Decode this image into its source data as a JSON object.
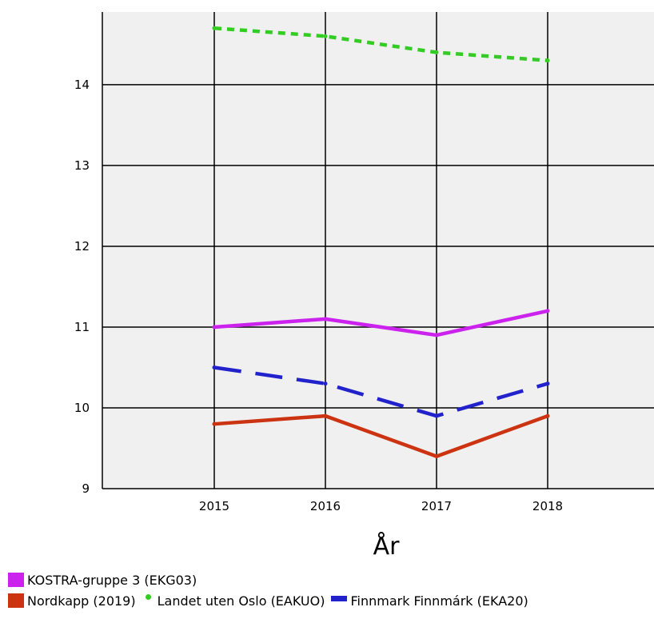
{
  "chart_data": {
    "type": "line",
    "xlabel": "År",
    "ylabel": "",
    "x": [
      "2015",
      "2016",
      "2017",
      "2018"
    ],
    "ylim": [
      9,
      14.9
    ],
    "yticks": [
      9,
      10,
      11,
      12,
      13,
      14
    ],
    "grid": true,
    "legend_position": "bottom",
    "series": [
      {
        "name": "KOSTRA-gruppe 3 (EKG03)",
        "values": [
          11.0,
          11.1,
          10.9,
          11.2
        ],
        "color": "#cc22ee",
        "style": "solid",
        "marker": "square"
      },
      {
        "name": "Nordkapp (2019)",
        "values": [
          9.8,
          9.9,
          9.4,
          9.9
        ],
        "color": "#cc3311",
        "style": "solid",
        "marker": "square"
      },
      {
        "name": "Landet uten Oslo (EAKUO)",
        "values": [
          14.7,
          14.6,
          14.4,
          14.3
        ],
        "color": "#33cc22",
        "style": "dotted",
        "marker": "dot"
      },
      {
        "name": "Finnmark Finnmárk (EKA20)",
        "values": [
          10.5,
          10.3,
          9.9,
          10.3
        ],
        "color": "#2222cc",
        "style": "dashed",
        "marker": "bar"
      }
    ]
  }
}
